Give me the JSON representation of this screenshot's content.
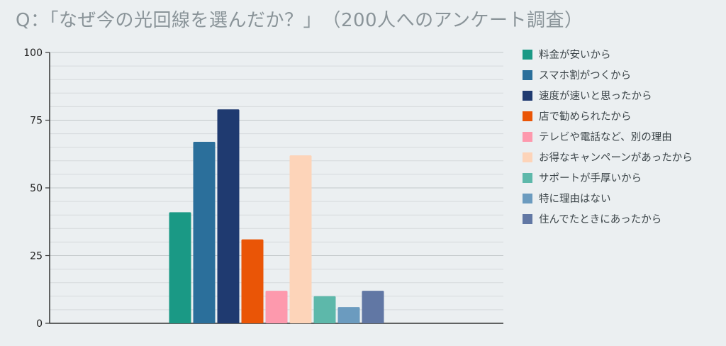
{
  "chart_data": {
    "type": "bar",
    "title": "Q：「なぜ今の光回線を選んだか？」　（200人へのアンケート調査）",
    "ylim": [
      0,
      100
    ],
    "yticks": [
      0,
      25,
      50,
      75,
      100
    ],
    "grid": true,
    "legend_position": "right",
    "series": [
      {
        "name": "料金が安いから",
        "value": 41,
        "color": "#1a9985"
      },
      {
        "name": "スマホ割がつくから",
        "value": 67,
        "color": "#2b6f9b"
      },
      {
        "name": "速度が速いと思ったから",
        "value": 79,
        "color": "#1f3a70"
      },
      {
        "name": "店で勧められたから",
        "value": 31,
        "color": "#ea5506"
      },
      {
        "name": "テレビや電話など、別の理由",
        "value": 12,
        "color": "#fd99ad"
      },
      {
        "name": "お得なキャンペーンがあったから",
        "value": 62,
        "color": "#fdd4b9"
      },
      {
        "name": "サポートが手厚いから",
        "value": 10,
        "color": "#5db8aa"
      },
      {
        "name": "特に理由はない",
        "value": 6,
        "color": "#6b9bbf"
      },
      {
        "name": "住んでたときにあったから",
        "value": 12,
        "color": "#6177a4"
      }
    ]
  }
}
